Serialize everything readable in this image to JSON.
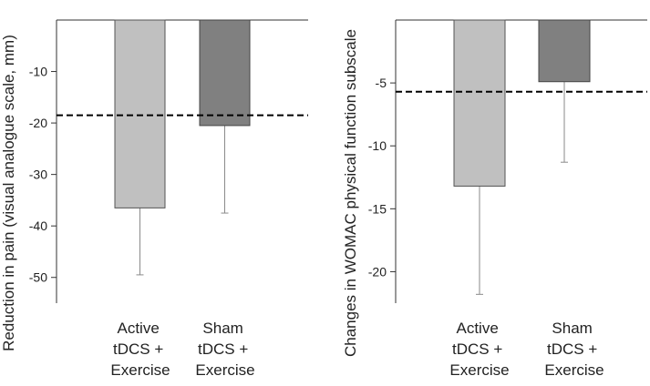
{
  "colors": {
    "active_bar": "#c0c0c0",
    "sham_bar": "#808080",
    "axis": "#333333",
    "error_bar": "#8a8a8a",
    "reference_line": "#000000"
  },
  "chart_data": [
    {
      "type": "bar",
      "ylabel": "Reduction in pain (visual analogue scale, mm)",
      "categories": [
        [
          "Active",
          "tDCS +",
          "Exercise"
        ],
        [
          "Sham",
          "tDCS +",
          "Exercise"
        ]
      ],
      "values": [
        -36.5,
        -20.5
      ],
      "error_lower": [
        -49.5,
        -37.5
      ],
      "reference_line": -18.5,
      "ylim": [
        -55,
        0
      ],
      "yticks": [
        -10,
        -20,
        -30,
        -40,
        -50
      ],
      "ytick_labels": [
        "-10",
        "-20",
        "-30",
        "-40",
        "-50"
      ]
    },
    {
      "type": "bar",
      "ylabel": "Changes in WOMAC physical function subscale",
      "categories": [
        [
          "Active",
          "tDCS +",
          "Exercise"
        ],
        [
          "Sham",
          "tDCS +",
          "Exercise"
        ]
      ],
      "values": [
        -13.2,
        -4.9
      ],
      "error_lower": [
        -21.8,
        -11.3
      ],
      "reference_line": -5.7,
      "ylim": [
        -22.5,
        0
      ],
      "yticks": [
        -5,
        -10,
        -15,
        -20
      ],
      "ytick_labels": [
        "-5",
        "-10",
        "-15",
        "-20"
      ]
    }
  ]
}
